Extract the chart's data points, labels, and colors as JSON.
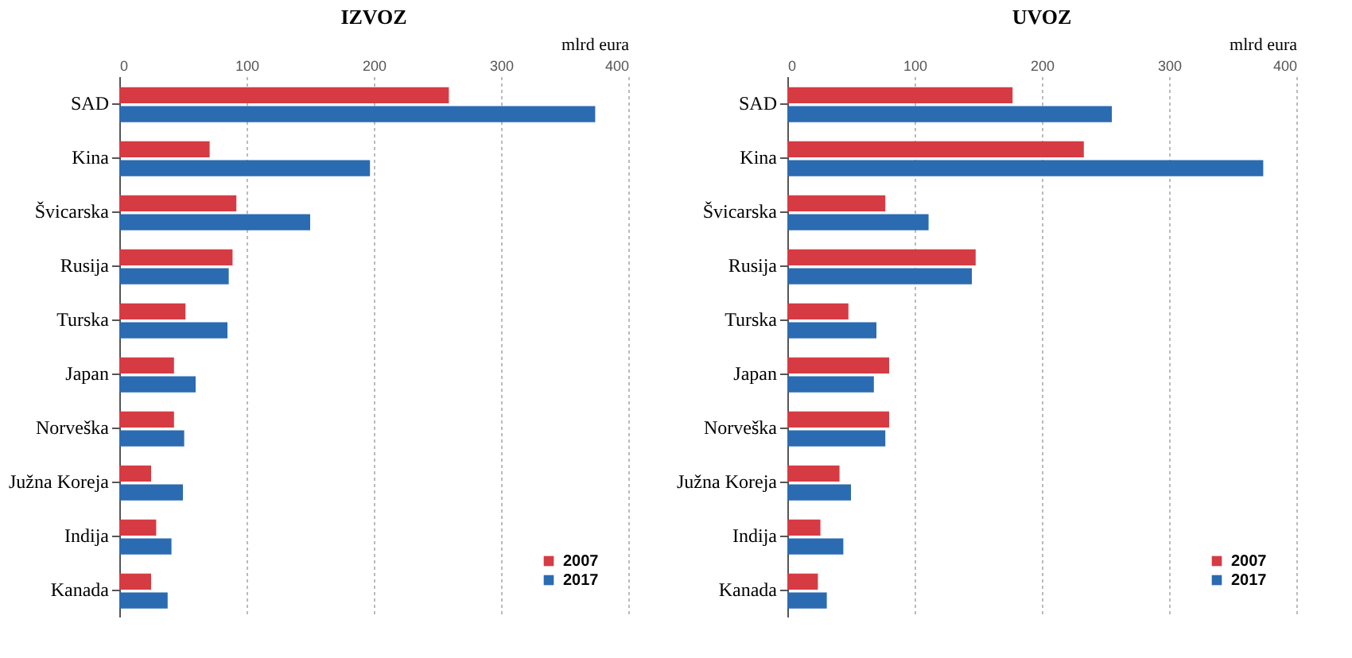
{
  "chart_data": [
    {
      "type": "bar",
      "orientation": "horizontal",
      "title": "IZVOZ",
      "xlabel": "mlrd eura",
      "categories": [
        "SAD",
        "Kina",
        "Švicarska",
        "Rusija",
        "Turska",
        "Japan",
        "Norveška",
        "Južna Koreja",
        "Indija",
        "Kanada"
      ],
      "series": [
        {
          "name": "2007",
          "color": "#d63b43",
          "values": [
            259,
            71,
            92,
            89,
            52,
            43,
            43,
            25,
            29,
            25
          ]
        },
        {
          "name": "2017",
          "color": "#2b6bb1",
          "values": [
            374,
            197,
            150,
            86,
            85,
            60,
            51,
            50,
            41,
            38
          ]
        }
      ],
      "xlim": [
        0,
        400
      ],
      "xticks": [
        0,
        100,
        200,
        300,
        400
      ],
      "grid": "x",
      "legend": "bottom right"
    },
    {
      "type": "bar",
      "orientation": "horizontal",
      "title": "UVOZ",
      "xlabel": "mlrd eura",
      "categories": [
        "SAD",
        "Kina",
        "Švicarska",
        "Rusija",
        "Turska",
        "Japan",
        "Norveška",
        "Južna Koreja",
        "Indija",
        "Kanada"
      ],
      "series": [
        {
          "name": "2007",
          "color": "#d63b43",
          "values": [
            177,
            233,
            77,
            148,
            48,
            80,
            80,
            41,
            26,
            24
          ]
        },
        {
          "name": "2017",
          "color": "#2b6bb1",
          "values": [
            255,
            374,
            111,
            145,
            70,
            68,
            77,
            50,
            44,
            31
          ]
        }
      ],
      "xlim": [
        0,
        400
      ],
      "xticks": [
        0,
        100,
        200,
        300,
        400
      ],
      "grid": "x",
      "legend": "bottom right"
    }
  ]
}
